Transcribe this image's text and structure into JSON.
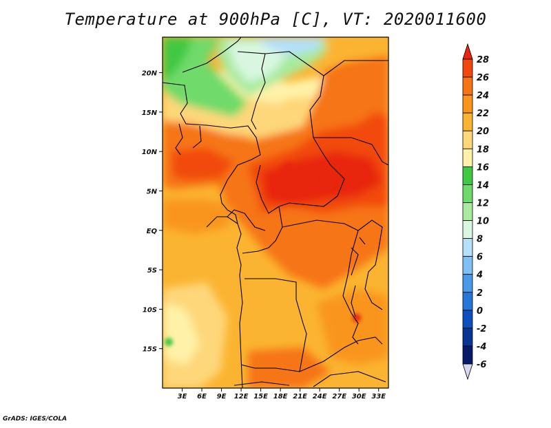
{
  "title": "Temperature at 900hPa [C], VT: 2020011600",
  "footer": "GrADS: IGES/COLA",
  "map": {
    "lon_range": [
      0,
      34.5
    ],
    "lat_range": [
      -20,
      24.5
    ],
    "x_ticks": [
      "3E",
      "6E",
      "9E",
      "12E",
      "15E",
      "18E",
      "21E",
      "24E",
      "27E",
      "30E",
      "33E"
    ],
    "x_tick_values": [
      3,
      6,
      9,
      12,
      15,
      18,
      21,
      24,
      27,
      30,
      33
    ],
    "y_ticks": [
      "20N",
      "15N",
      "10N",
      "5N",
      "EQ",
      "5S",
      "10S",
      "15S"
    ],
    "y_tick_values": [
      20,
      15,
      10,
      5,
      0,
      -5,
      -10,
      -15
    ]
  },
  "colorbar": {
    "levels": [
      "28",
      "26",
      "24",
      "22",
      "20",
      "18",
      "16",
      "14",
      "12",
      "10",
      "8",
      "6",
      "4",
      "2",
      "0",
      "-2",
      "-4",
      "-6"
    ],
    "colors_top_to_bottom": [
      "#e8250e",
      "#f2480d",
      "#f67414",
      "#f9951c",
      "#fbb431",
      "#fed77a",
      "#fff2a8",
      "#3fc842",
      "#6fda6b",
      "#a9ea9f",
      "#d8f6e0",
      "#b4e0fb",
      "#7fc0f5",
      "#4b9ae8",
      "#2777d8",
      "#0f4fbd",
      "#083494",
      "#061a6c",
      "#d7d7f2"
    ],
    "top_triangle_color": "#e8250e",
    "bottom_triangle_color": "#d7d7f2"
  }
}
